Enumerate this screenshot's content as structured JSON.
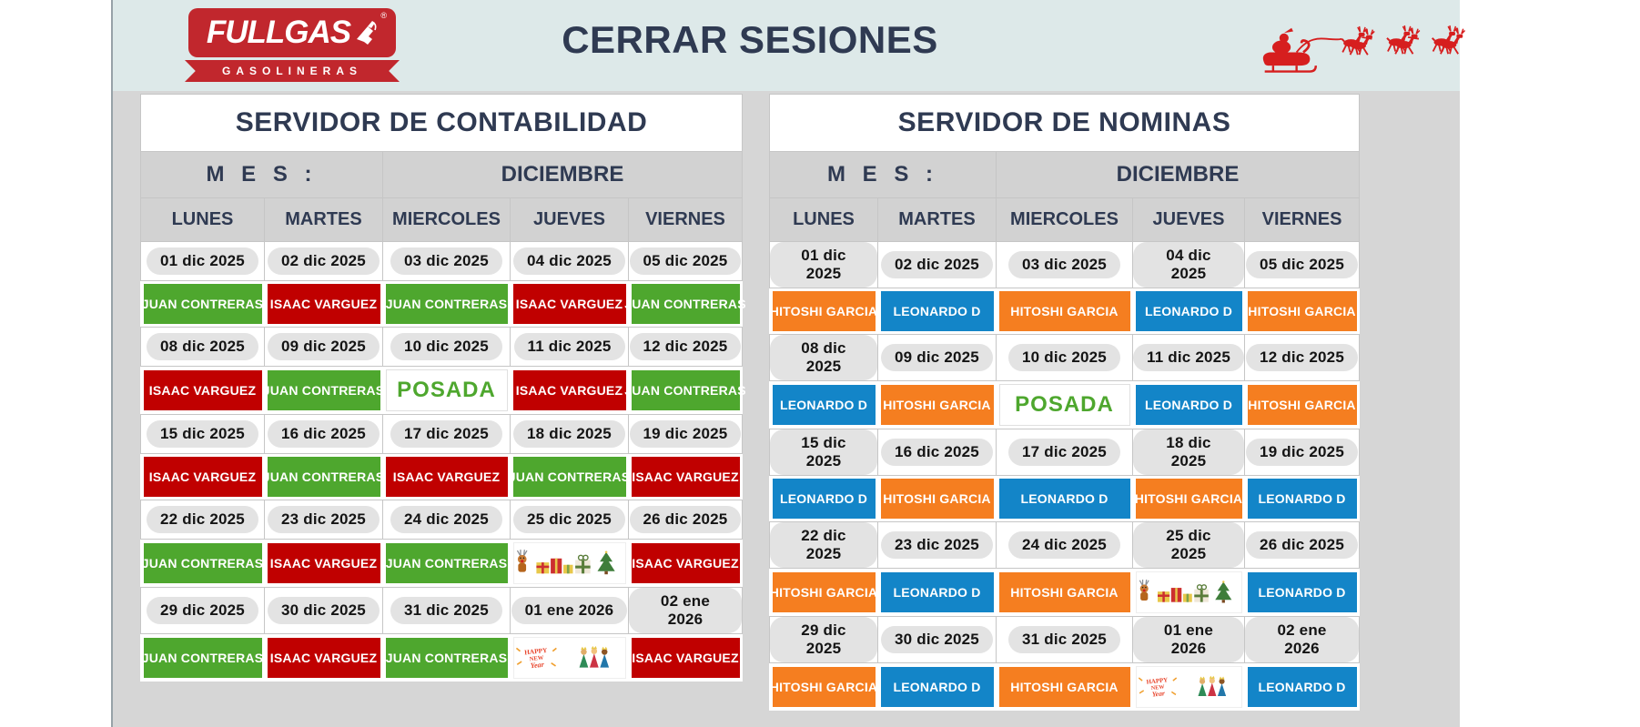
{
  "page": {
    "title": "CERRAR SESIONES"
  },
  "logo": {
    "brand": "FULLGAS",
    "registered_mark": "®",
    "tagline": "GASOLINERAS"
  },
  "decorations": {
    "header_right": "santa-sleigh-with-reindeer"
  },
  "colors": {
    "band": "#dde9e9",
    "page_gray": "#d6d6d6",
    "row_gray": "#d2d2d2",
    "pill": "#e3e3e3",
    "navy": "#2f3a52",
    "logo_red": "#c1272d",
    "santa_red": "#d61e1e",
    "green": "#4ea72e",
    "red": "#c00000",
    "orange": "#f57e20",
    "blue": "#1385c8"
  },
  "tables": [
    {
      "title": "SERVIDOR DE CONTABILIDAD",
      "mes_label": "M E S :",
      "month": "DICIEMBRE",
      "day_headers": [
        "LUNES",
        "MARTES",
        "MIERCOLES",
        "JUEVES",
        "VIERNES"
      ],
      "weeks": [
        {
          "dates": [
            "01 dic 2025",
            "02 dic 2025",
            "03 dic 2025",
            "04 dic 2025",
            "05 dic 2025"
          ],
          "assignments": [
            {
              "label": "JUAN CONTRERAS",
              "color": "green"
            },
            {
              "label": "ISAAC VARGUEZ",
              "color": "red"
            },
            {
              "label": "JUAN CONTRERAS",
              "color": "green"
            },
            {
              "label": "ISAAC VARGUEZ",
              "color": "red"
            },
            {
              "label": "JUAN CONTRERAS",
              "color": "green"
            }
          ]
        },
        {
          "dates": [
            "08 dic 2025",
            "09 dic 2025",
            "10 dic 2025",
            "11 dic 2025",
            "12 dic 2025"
          ],
          "assignments": [
            {
              "label": "ISAAC VARGUEZ",
              "color": "red"
            },
            {
              "label": "JUAN CONTRERAS",
              "color": "green"
            },
            {
              "label": "POSADA",
              "color": "posada"
            },
            {
              "label": "ISAAC VARGUEZ",
              "color": "red"
            },
            {
              "label": "JUAN CONTRERAS",
              "color": "green"
            }
          ]
        },
        {
          "dates": [
            "15 dic 2025",
            "16 dic 2025",
            "17 dic 2025",
            "18 dic 2025",
            "19 dic 2025"
          ],
          "assignments": [
            {
              "label": "ISAAC VARGUEZ",
              "color": "red"
            },
            {
              "label": "JUAN CONTRERAS",
              "color": "green"
            },
            {
              "label": "ISAAC VARGUEZ",
              "color": "red"
            },
            {
              "label": "JUAN CONTRERAS",
              "color": "green"
            },
            {
              "label": "ISAAC VARGUEZ",
              "color": "red"
            }
          ]
        },
        {
          "dates": [
            "22 dic 2025",
            "23 dic 2025",
            "24 dic 2025",
            "25 dic 2025",
            "26 dic 2025"
          ],
          "assignments": [
            {
              "label": "JUAN CONTRERAS",
              "color": "green"
            },
            {
              "label": "ISAAC VARGUEZ",
              "color": "red"
            },
            {
              "label": "JUAN CONTRERAS",
              "color": "green"
            },
            {
              "icon": "christmas-gifts",
              "color": "icon"
            },
            {
              "label": "ISAAC VARGUEZ",
              "color": "red"
            }
          ]
        },
        {
          "dates": [
            "29 dic 2025",
            "30 dic 2025",
            "31 dic 2025",
            "01 ene 2026",
            "02 ene 2026"
          ],
          "assignments": [
            {
              "label": "JUAN CONTRERAS",
              "color": "green"
            },
            {
              "label": "ISAAC VARGUEZ",
              "color": "red"
            },
            {
              "label": "JUAN CONTRERAS",
              "color": "green"
            },
            {
              "icon": "happy-new-year",
              "color": "icon"
            },
            {
              "label": "ISAAC VARGUEZ",
              "color": "red"
            }
          ]
        }
      ]
    },
    {
      "title": "SERVIDOR DE NOMINAS",
      "mes_label": "M E S :",
      "month": "DICIEMBRE",
      "day_headers": [
        "LUNES",
        "MARTES",
        "MIERCOLES",
        "JUEVES",
        "VIERNES"
      ],
      "weeks": [
        {
          "dates": [
            "01 dic 2025",
            "02 dic 2025",
            "03 dic 2025",
            "04 dic 2025",
            "05 dic 2025"
          ],
          "assignments": [
            {
              "label": "HITOSHI GARCIA",
              "color": "orange"
            },
            {
              "label": "LEONARDO D",
              "color": "blue"
            },
            {
              "label": "HITOSHI GARCIA",
              "color": "orange"
            },
            {
              "label": "LEONARDO D",
              "color": "blue"
            },
            {
              "label": "HITOSHI GARCIA",
              "color": "orange"
            }
          ]
        },
        {
          "dates": [
            "08 dic 2025",
            "09 dic 2025",
            "10 dic 2025",
            "11 dic 2025",
            "12 dic 2025"
          ],
          "assignments": [
            {
              "label": "LEONARDO D",
              "color": "blue"
            },
            {
              "label": "HITOSHI GARCIA",
              "color": "orange"
            },
            {
              "label": "POSADA",
              "color": "posada"
            },
            {
              "label": "LEONARDO D",
              "color": "blue"
            },
            {
              "label": "HITOSHI GARCIA",
              "color": "orange"
            }
          ]
        },
        {
          "dates": [
            "15 dic 2025",
            "16 dic 2025",
            "17 dic 2025",
            "18 dic 2025",
            "19 dic 2025"
          ],
          "assignments": [
            {
              "label": "LEONARDO D",
              "color": "blue"
            },
            {
              "label": "HITOSHI GARCIA",
              "color": "orange"
            },
            {
              "label": "LEONARDO D",
              "color": "blue"
            },
            {
              "label": "HITOSHI GARCIA",
              "color": "orange"
            },
            {
              "label": "LEONARDO D",
              "color": "blue"
            }
          ]
        },
        {
          "dates": [
            "22 dic 2025",
            "23 dic 2025",
            "24 dic 2025",
            "25 dic 2025",
            "26 dic 2025"
          ],
          "assignments": [
            {
              "label": "HITOSHI GARCIA",
              "color": "orange"
            },
            {
              "label": "LEONARDO D",
              "color": "blue"
            },
            {
              "label": "HITOSHI GARCIA",
              "color": "orange"
            },
            {
              "icon": "christmas-gifts",
              "color": "icon"
            },
            {
              "label": "LEONARDO D",
              "color": "blue"
            }
          ]
        },
        {
          "dates": [
            "29 dic 2025",
            "30 dic 2025",
            "31 dic 2025",
            "01 ene 2026",
            "02 ene 2026"
          ],
          "assignments": [
            {
              "label": "HITOSHI GARCIA",
              "color": "orange"
            },
            {
              "label": "LEONARDO D",
              "color": "blue"
            },
            {
              "label": "HITOSHI GARCIA",
              "color": "orange"
            },
            {
              "icon": "happy-new-year",
              "color": "icon"
            },
            {
              "label": "LEONARDO D",
              "color": "blue"
            }
          ]
        }
      ]
    }
  ]
}
